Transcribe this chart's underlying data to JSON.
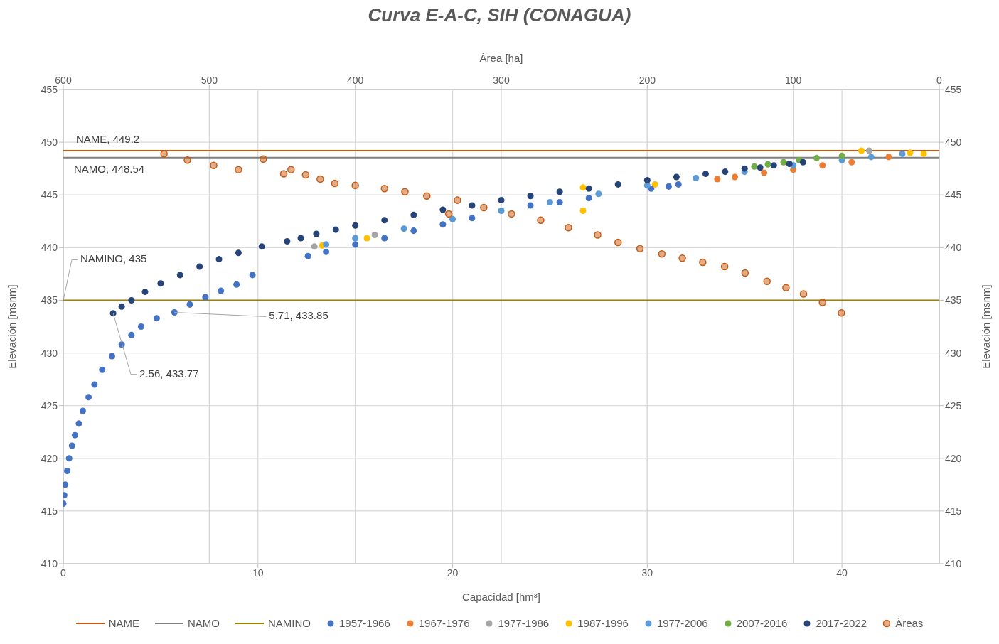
{
  "chart_data": {
    "type": "scatter",
    "title": "Curva E-A-C, SIH (CONAGUA)",
    "xlabel": "Capacidad [hm³]",
    "ylabel": "Elevación [msnm]",
    "y2label": "Elevación [msnm]",
    "x2label": "Área [ha]",
    "xlim": [
      0,
      45
    ],
    "xticks": [
      0,
      10,
      20,
      30,
      40
    ],
    "ylim": [
      410,
      455
    ],
    "yticks": [
      410,
      415,
      420,
      425,
      430,
      435,
      440,
      445,
      450,
      455
    ],
    "y2lim": [
      410,
      455
    ],
    "y2ticks": [
      410,
      415,
      420,
      425,
      430,
      435,
      440,
      445,
      450,
      455
    ],
    "x2lim": [
      600,
      0
    ],
    "x2ticks": [
      600,
      500,
      400,
      300,
      200,
      100,
      0
    ],
    "grid": true,
    "legend": "bottom",
    "marker": "circle",
    "series": [
      {
        "name": "NAME",
        "type": "line",
        "marker": "none",
        "color": "#c55a11",
        "x": [
          0,
          45
        ],
        "values": [
          449.2,
          449.2
        ]
      },
      {
        "name": "NAMO",
        "type": "line",
        "marker": "none",
        "color": "#7f7f7f",
        "x": [
          0,
          45
        ],
        "values": [
          448.54,
          448.54
        ]
      },
      {
        "name": "NAMINO",
        "type": "line",
        "marker": "none",
        "color": "#a08000",
        "x": [
          0,
          45
        ],
        "values": [
          435,
          435
        ]
      },
      {
        "name": "1957-1966",
        "color": "#4472c4",
        "x": [
          0,
          0.05,
          0.1,
          0.2,
          0.3,
          0.45,
          0.6,
          0.8,
          1,
          1.3,
          1.6,
          2,
          2.5,
          3,
          3.5,
          4,
          4.8,
          5.71,
          6.5,
          7.3,
          8.1,
          8.9,
          9.72,
          12.57,
          13.5,
          15,
          16.5,
          18,
          19.5,
          21,
          24,
          25.5,
          27,
          30.2,
          31.1,
          31.6
        ],
        "values": [
          415.7,
          416.5,
          417.5,
          418.8,
          420,
          421.2,
          422.2,
          423.3,
          424.5,
          425.8,
          427,
          428.4,
          429.7,
          430.8,
          431.7,
          432.5,
          433.3,
          433.85,
          434.6,
          435.3,
          435.9,
          436.5,
          437.4,
          439.2,
          439.6,
          440.3,
          440.9,
          441.6,
          442.2,
          442.8,
          444,
          444.3,
          444.7,
          445.6,
          445.8,
          446
        ]
      },
      {
        "name": "1967-1976",
        "color": "#ed7d31",
        "x": [
          33.6,
          34.5,
          36,
          37.5,
          39,
          40.5,
          42.4
        ],
        "values": [
          446.5,
          446.7,
          447.1,
          447.4,
          447.8,
          448.1,
          448.6
        ]
      },
      {
        "name": "1977-1986",
        "color": "#a5a5a5",
        "x": [
          12.9,
          16,
          41.4
        ],
        "values": [
          440.1,
          441.2,
          449.2
        ]
      },
      {
        "name": "1987-1996",
        "color": "#ffc000",
        "x": [
          13.3,
          15.6,
          26.7,
          26.7,
          30.4,
          41,
          43.5,
          44.2
        ],
        "values": [
          440.2,
          440.9,
          443.5,
          445.7,
          446,
          449.2,
          449,
          448.9
        ]
      },
      {
        "name": "1977-2006",
        "color": "#5b9bd5",
        "x": [
          13.5,
          15,
          17.5,
          20,
          22.5,
          25,
          27.5,
          30,
          32.5,
          35,
          37.5,
          40,
          41.5,
          43.1
        ],
        "values": [
          440.3,
          440.9,
          441.8,
          442.7,
          443.5,
          444.3,
          445.1,
          445.9,
          446.6,
          447.2,
          447.8,
          448.3,
          448.6,
          448.9
        ]
      },
      {
        "name": "2007-2016",
        "color": "#70ad47",
        "x": [
          35.5,
          36.2,
          37,
          37.8,
          38.7,
          40
        ],
        "values": [
          447.7,
          447.9,
          448.1,
          448.3,
          448.5,
          448.7
        ]
      },
      {
        "name": "2017-2022",
        "color": "#264478",
        "x": [
          2.56,
          3,
          3.5,
          4.2,
          5,
          6,
          7,
          8,
          9,
          10.2,
          11.5,
          12.2,
          13,
          14,
          15,
          16.5,
          18,
          19.5,
          21,
          22.5,
          24,
          25.5,
          27,
          28.5,
          30,
          31.5,
          33,
          34,
          35,
          35.8,
          36.5,
          37.3,
          38
        ],
        "values": [
          433.77,
          434.4,
          435,
          435.8,
          436.6,
          437.4,
          438.2,
          438.9,
          439.5,
          440.1,
          440.6,
          440.9,
          441.3,
          441.7,
          442.1,
          442.6,
          443.1,
          443.6,
          444,
          444.5,
          444.9,
          445.3,
          445.6,
          446,
          446.4,
          446.7,
          447,
          447.2,
          447.5,
          447.6,
          447.8,
          447.95,
          448.1
        ]
      },
      {
        "name": "Áreas",
        "color": "#c55a11",
        "axis": "x2",
        "x": [
          531,
          515,
          497,
          480,
          463,
          449,
          444,
          434,
          424,
          414,
          400,
          380,
          366,
          351,
          336,
          330,
          312,
          293,
          273,
          254,
          234,
          220,
          205,
          190,
          176,
          162,
          147,
          133,
          118,
          105,
          93,
          80,
          67
        ],
        "values": [
          448.9,
          448.3,
          447.8,
          447.4,
          448.4,
          447,
          447.4,
          446.9,
          446.5,
          446.1,
          445.9,
          445.6,
          445.3,
          444.9,
          443.2,
          444.5,
          443.8,
          443.2,
          442.6,
          441.9,
          441.2,
          440.5,
          439.9,
          439.4,
          439,
          438.6,
          438.2,
          437.6,
          436.8,
          436.2,
          435.6,
          434.8,
          433.8
        ]
      }
    ],
    "annotations": [
      {
        "text": "NAME, 449.2",
        "x": 0,
        "y": 449.2
      },
      {
        "text": "NAMO, 448.54",
        "x": 0,
        "y": 448.54
      },
      {
        "text": "NAMINO, 435",
        "x": 0,
        "y": 435
      },
      {
        "text": "5.71, 433.85",
        "x": 5.71,
        "y": 433.85
      },
      {
        "text": "2.56, 433.77",
        "x": 2.56,
        "y": 433.77
      }
    ]
  }
}
